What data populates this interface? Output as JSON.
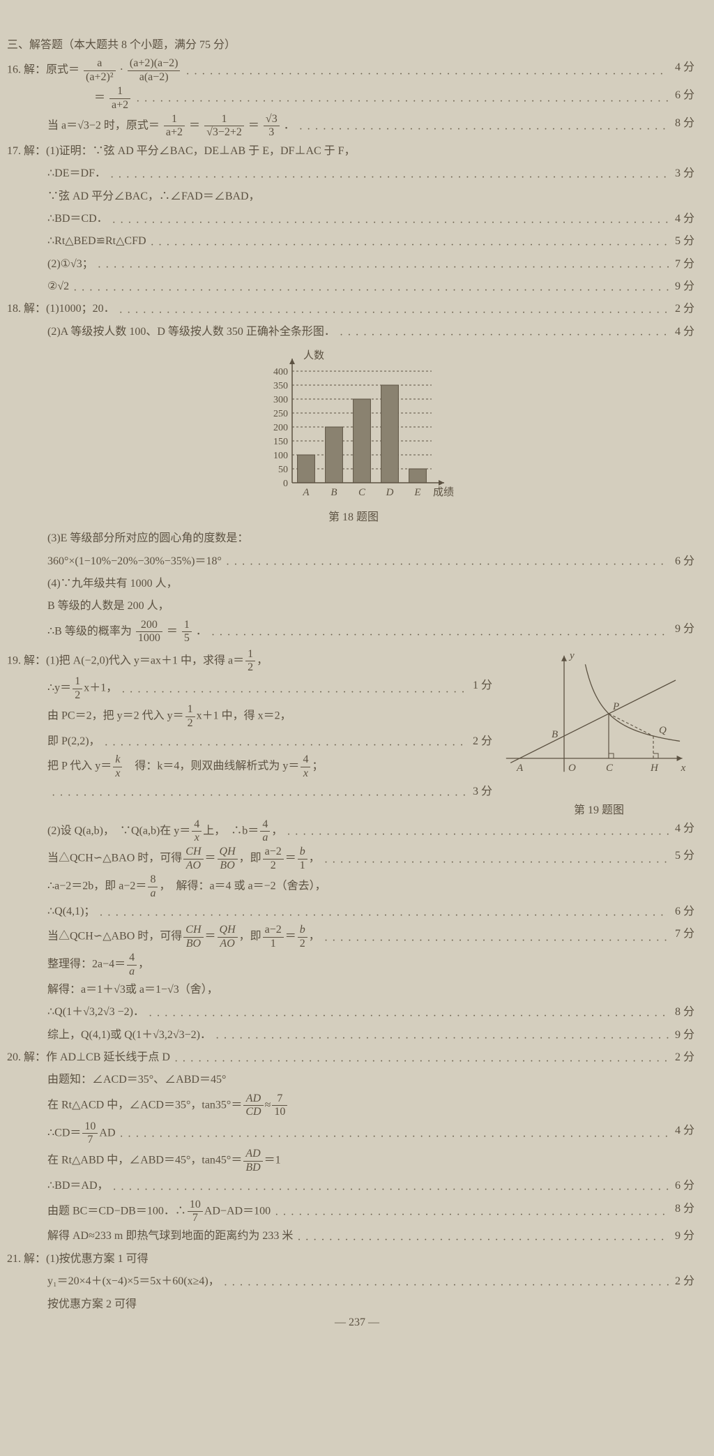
{
  "colors": {
    "ink": "#5c5242",
    "paper": "#d4cebe",
    "bar_fill": "#8a8270",
    "bar_stroke": "#5c5242",
    "axis": "#5c5242",
    "grid_dash": "#7a715e"
  },
  "font": {
    "family": "SimSun / STSong",
    "base_size_pt": 19,
    "frac_size_pt": 17
  },
  "header": "三、解答题（本大题共 8 个小题，满分 75 分）",
  "q16": {
    "l1_lhs": "16. 解：原式＝",
    "l1_f1_n": "a",
    "l1_f1_d": "(a+2)²",
    "l1_dot": "·",
    "l1_f2_n": "(a+2)(a−2)",
    "l1_f2_d": "a(a−2)",
    "p1": "4 分",
    "l2_eq": "＝",
    "l2_f_n": "1",
    "l2_f_d": "a+2",
    "p2": "6 分",
    "l3_a": "当 a＝√3−2 时，原式＝",
    "l3_f1_n": "1",
    "l3_f1_d": "a+2",
    "l3_eq1": "＝",
    "l3_f2_n": "1",
    "l3_f2_d": "√3−2+2",
    "l3_eq2": "＝",
    "l3_f3_n": "√3",
    "l3_f3_d": "3",
    "l3_tail": "．",
    "p3": "8 分"
  },
  "q17": {
    "l1": "17. 解：(1)证明：∵弦 AD 平分∠BAC，DE⊥AB 于 E，DF⊥AC 于 F，",
    "l2": "∴DE＝DF．",
    "p2": "3 分",
    "l3": "∵弦 AD 平分∠BAC，∴∠FAD＝∠BAD，",
    "l4": "∴BD＝CD．",
    "p4": "4 分",
    "l5": "∴Rt△BED≌Rt△CFD",
    "p5": "5 分",
    "l6": "(2)①√3；",
    "p6": "7 分",
    "l7": "②√2",
    "p7": "9 分"
  },
  "q18": {
    "l1": "18. 解：(1)1000；20．",
    "p1": "2 分",
    "l2": "(2)A 等级按人数 100、D 等级按人数 350 正确补全条形图．",
    "p2": "4 分",
    "chart": {
      "type": "bar",
      "y_label": "人数",
      "x_label": "成绩",
      "categories": [
        "A",
        "B",
        "C",
        "D",
        "E"
      ],
      "values": [
        100,
        200,
        300,
        350,
        50
      ],
      "ylim": [
        0,
        400
      ],
      "ytick_step": 50,
      "yticks": [
        50,
        100,
        150,
        200,
        250,
        300,
        350,
        400
      ],
      "bar_width": 0.62,
      "caption": "第 18 题图"
    },
    "l3": "(3)E 等级部分所对应的圆心角的度数是：",
    "l4": "360°×(1−10%−20%−30%−35%)＝18°",
    "p4": "6 分",
    "l5": "(4)∵九年级共有 1000 人，",
    "l6": "B 等级的人数是 200 人，",
    "l7_head": "∴B 等级的概率为",
    "l7_f1_n": "200",
    "l7_f1_d": "1000",
    "l7_eq": "＝",
    "l7_f2_n": "1",
    "l7_f2_d": "5",
    "l7_tail": "．",
    "p7": "9 分"
  },
  "q19": {
    "l1_a": "19. 解：(1)把 A(−2,0)代入 y＝ax＋1 中，求得 a＝",
    "l1_f_n": "1",
    "l1_f_d": "2",
    "l1_tail": "，",
    "l2_a": "∴y＝",
    "l2_f_n": "1",
    "l2_f_d": "2",
    "l2_tail": "x＋1，",
    "p2": "1 分",
    "l3_a": "由 PC＝2，把 y＝2 代入 y＝",
    "l3_f_n": "1",
    "l3_f_d": "2",
    "l3_tail": "x＋1 中，得 x＝2，",
    "l4": "即 P(2,2)，",
    "p4": "2 分",
    "l5_a": "把 P 代入 y＝",
    "l5_f1_n": "k",
    "l5_f1_d": "x",
    "l5_mid": "　得：k＝4，则双曲线解析式为 y＝",
    "l5_f2_n": "4",
    "l5_f2_d": "x",
    "l5_tail": "；",
    "p5": "3 分",
    "fig_caption": "第 19 题图",
    "fig": {
      "labels": [
        "y",
        "x",
        "A",
        "O",
        "B",
        "C",
        "H",
        "P",
        "Q"
      ],
      "axis_color": "#5c5242",
      "line_color": "#5c5242"
    },
    "l6_a": "(2)设 Q(a,b)，　∵Q(a,b)在 y＝",
    "l6_f1_n": "4",
    "l6_f1_d": "x",
    "l6_mid": "上，　∴b＝",
    "l6_f2_n": "4",
    "l6_f2_d": "a",
    "l6_tail": "，",
    "p6": "4 分",
    "l7_a": "当△QCH∽△BAO 时，可得",
    "l7_f1_n": "CH",
    "l7_f1_d": "AO",
    "l7_eq1": "＝",
    "l7_f2_n": "QH",
    "l7_f2_d": "BO",
    "l7_mid": "，即",
    "l7_f3_n": "a−2",
    "l7_f3_d": "2",
    "l7_eq2": "＝",
    "l7_f4_n": "b",
    "l7_f4_d": "1",
    "l7_tail": "，",
    "p7": "5 分",
    "l8_a": "∴a−2＝2b，即 a−2＝",
    "l8_f_n": "8",
    "l8_f_d": "a",
    "l8_tail": "，　解得：a＝4 或 a＝−2（舍去），",
    "l9": "∴Q(4,1)；",
    "p9": "6 分",
    "l10_a": "当△QCH∽△ABO 时，可得",
    "l10_f1_n": "CH",
    "l10_f1_d": "BO",
    "l10_eq1": "＝",
    "l10_f2_n": "QH",
    "l10_f2_d": "AO",
    "l10_mid": "，即",
    "l10_f3_n": "a−2",
    "l10_f3_d": "1",
    "l10_eq2": "＝",
    "l10_f4_n": "b",
    "l10_f4_d": "2",
    "l10_tail": "，",
    "p10": "7 分",
    "l11_a": "整理得：2a−4＝",
    "l11_f_n": "4",
    "l11_f_d": "a",
    "l11_tail": "，",
    "l12": "解得：a＝1＋√3或 a＝1−√3（舍），",
    "l13": "∴Q(1＋√3,2√3 −2)．",
    "p13": "8 分",
    "l14": "综上，Q(4,1)或 Q(1＋√3,2√3−2)．",
    "p14": "9 分"
  },
  "q20": {
    "l1": "20. 解：作 AD⊥CB 延长线于点 D",
    "p1": "2 分",
    "l2": "由题知：∠ACD＝35°、∠ABD＝45°",
    "l3_a": "在 Rt△ACD 中，∠ACD＝35°，tan35°＝",
    "l3_f1_n": "AD",
    "l3_f1_d": "CD",
    "l3_mid": "≈",
    "l3_f2_n": "7",
    "l3_f2_d": "10",
    "l4_a": "∴CD＝",
    "l4_f_n": "10",
    "l4_f_d": "7",
    "l4_tail": "AD",
    "p4": "4 分",
    "l5_a": "在 Rt△ABD 中，∠ABD＝45°，tan45°＝",
    "l5_f_n": "AD",
    "l5_f_d": "BD",
    "l5_tail": "＝1",
    "l6": "∴BD＝AD，",
    "p6": "6 分",
    "l7_a": "由题 BC＝CD−DB＝100．∴",
    "l7_f_n": "10",
    "l7_f_d": "7",
    "l7_tail": "AD−AD＝100",
    "p7": "8 分",
    "l8": "解得 AD≈233 m 即热气球到地面的距离约为 233 米",
    "p8": "9 分"
  },
  "q21": {
    "l1": "21. 解：(1)按优惠方案 1 可得",
    "l2": "y₁＝20×4＋(x−4)×5＝5x＋60(x≥4)，",
    "p2": "2 分",
    "l3": "按优惠方案 2 可得"
  },
  "page_number": "— 237 —"
}
